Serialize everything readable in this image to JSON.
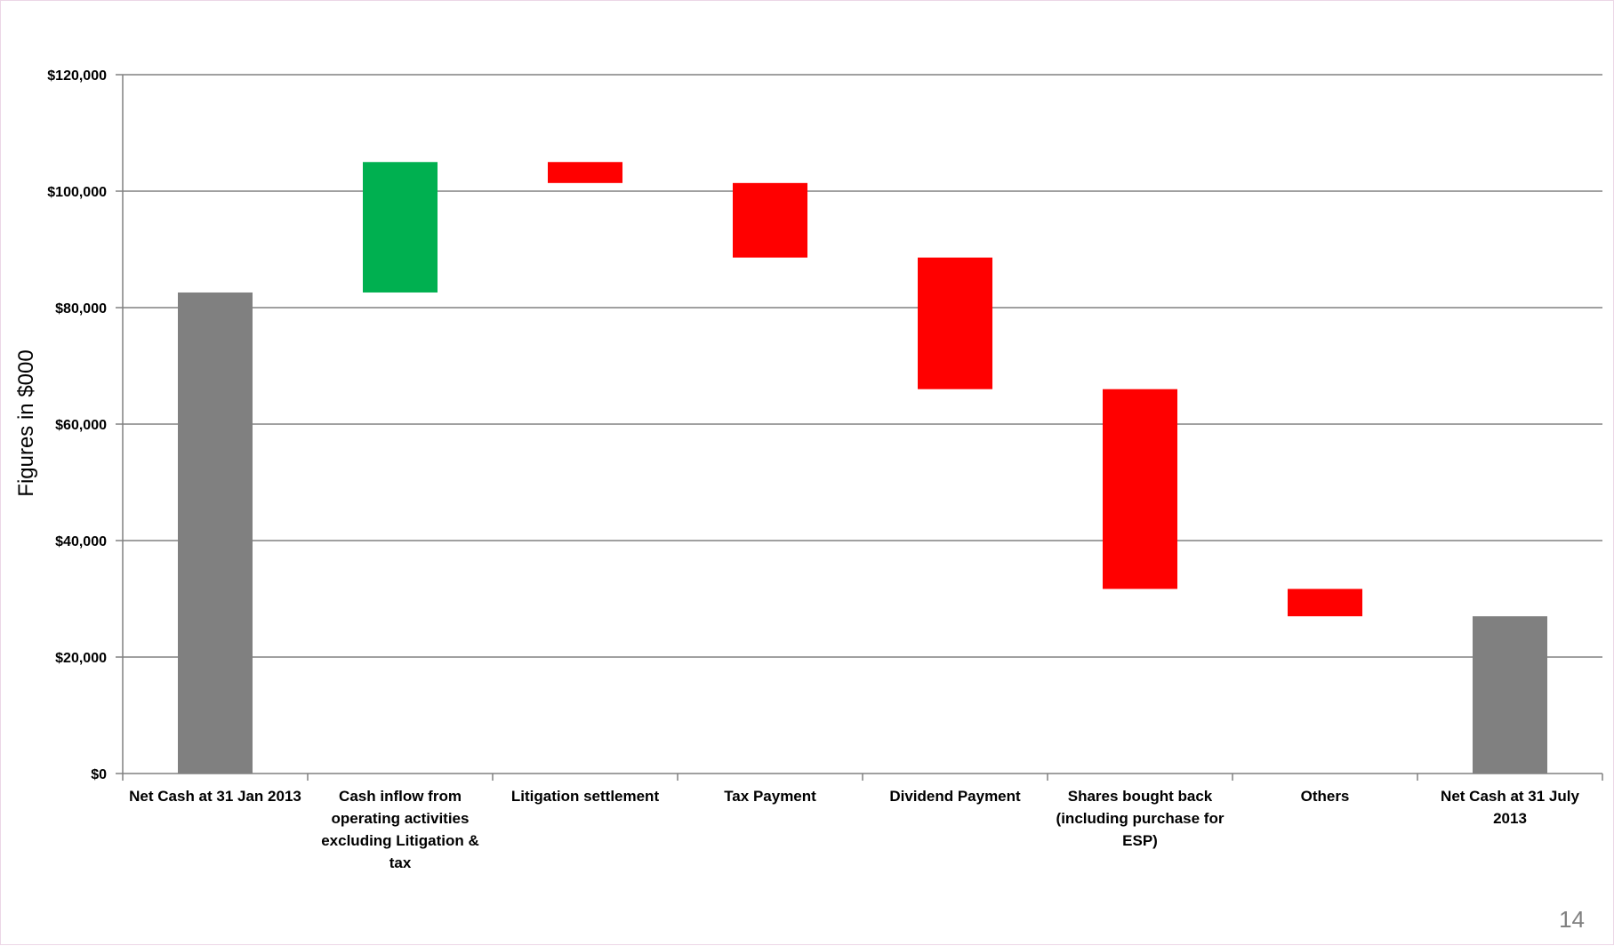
{
  "slide": {
    "page_number": "14"
  },
  "chart_data": {
    "type": "bar",
    "subtype": "waterfall",
    "title": "",
    "xlabel": "",
    "ylabel": "Figures in $000",
    "ylim": [
      0,
      120000
    ],
    "yticks": [
      0,
      20000,
      40000,
      60000,
      80000,
      100000,
      120000
    ],
    "ytick_labels": [
      "$0",
      "$20,000",
      "$40,000",
      "$60,000",
      "$80,000",
      "$100,000",
      "$120,000"
    ],
    "grid": true,
    "legend": "none",
    "categories": [
      [
        "Net Cash  at 31 Jan 2013"
      ],
      [
        "Cash inflow from",
        "operating activities",
        "excluding  Litigation &",
        "tax"
      ],
      [
        "Litigation settlement"
      ],
      [
        "Tax Payment"
      ],
      [
        "Dividend Payment"
      ],
      [
        "Shares bought back",
        "(including purchase for",
        "ESP)"
      ],
      [
        "Others"
      ],
      [
        "Net Cash  at 31 July",
        "2013"
      ]
    ],
    "bars": [
      {
        "kind": "total",
        "start": 0,
        "end": 82600,
        "color": "#808080"
      },
      {
        "kind": "increase",
        "start": 82600,
        "end": 105000,
        "color": "#00b050"
      },
      {
        "kind": "decrease",
        "start": 105000,
        "end": 101400,
        "color": "#ff0000"
      },
      {
        "kind": "decrease",
        "start": 101400,
        "end": 88600,
        "color": "#ff0000"
      },
      {
        "kind": "decrease",
        "start": 88600,
        "end": 66000,
        "color": "#ff0000"
      },
      {
        "kind": "decrease",
        "start": 66000,
        "end": 31700,
        "color": "#ff0000"
      },
      {
        "kind": "decrease",
        "start": 31700,
        "end": 27000,
        "color": "#ff0000"
      },
      {
        "kind": "total",
        "start": 0,
        "end": 27000,
        "color": "#808080"
      }
    ],
    "colors": {
      "total": "#808080",
      "increase": "#00b050",
      "decrease": "#ff0000",
      "gridline": "#808080",
      "axis": "#808080"
    }
  }
}
